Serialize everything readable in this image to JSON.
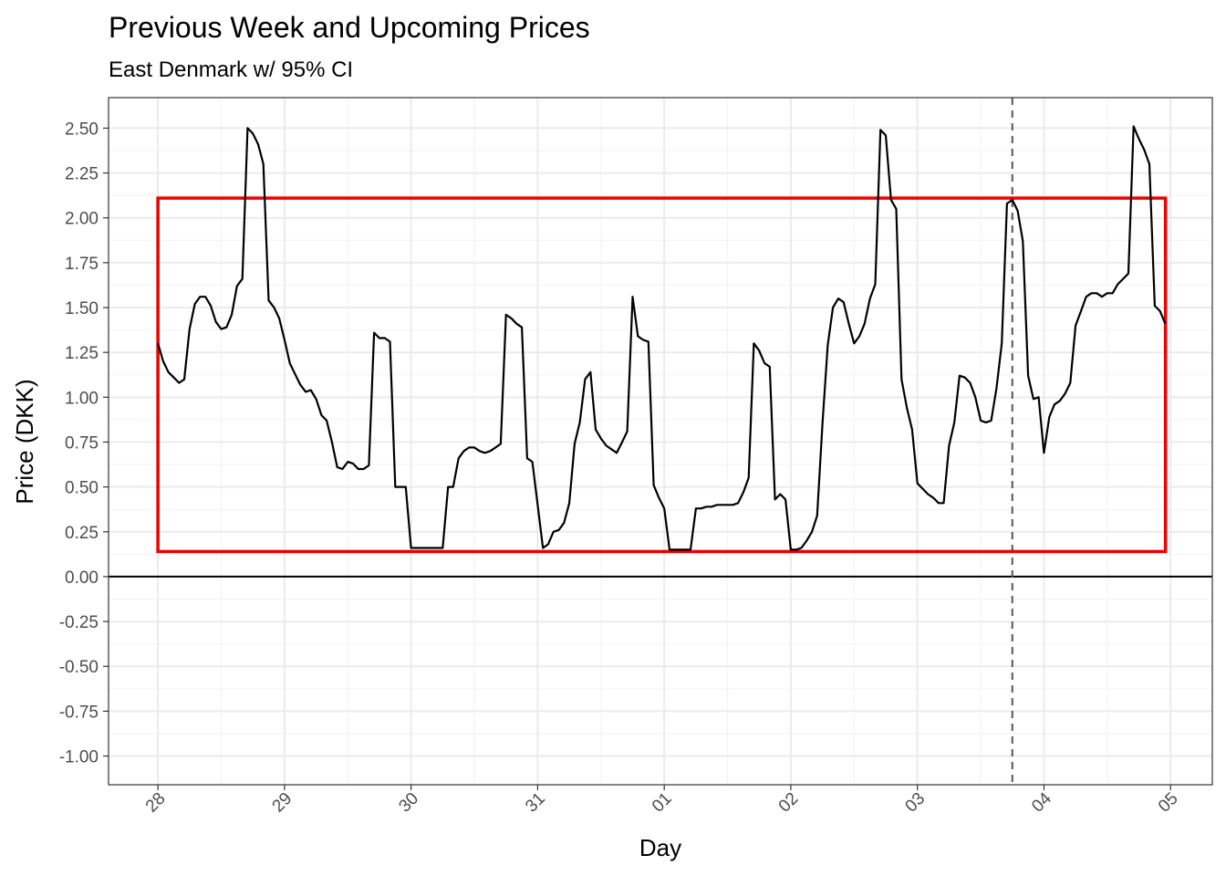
{
  "chart_data": {
    "type": "line",
    "title": "Previous Week and Upcoming Prices",
    "subtitle": "East Denmark w/ 95% CI",
    "xlabel": "Day",
    "ylabel": "Price (DKK)",
    "x_tick_labels": [
      "28",
      "29",
      "30",
      "31",
      "01",
      "02",
      "03",
      "04",
      "05"
    ],
    "y_tick_labels": [
      "-1.00",
      "-0.75",
      "-0.50",
      "-0.25",
      "0.00",
      "0.25",
      "0.50",
      "0.75",
      "1.00",
      "1.25",
      "1.50",
      "1.75",
      "2.00",
      "2.25",
      "2.50"
    ],
    "y_ticks": [
      -1.0,
      -0.75,
      -0.5,
      -0.25,
      0.0,
      0.25,
      0.5,
      0.75,
      1.0,
      1.25,
      1.5,
      1.75,
      2.0,
      2.25,
      2.5
    ],
    "xlim": [
      -0.39,
      8.33
    ],
    "ylim": [
      -1.16,
      2.67
    ],
    "grid": true,
    "hline_y": 0.0,
    "vline_x": 6.75,
    "ci_band": {
      "x_start": 0.0,
      "x_end": 7.96,
      "y_low": 0.14,
      "y_high": 2.11,
      "color": "#ee0000"
    },
    "series": [
      {
        "color": "#000000",
        "x": [
          0.0,
          0.042,
          0.083,
          0.125,
          0.167,
          0.208,
          0.25,
          0.292,
          0.333,
          0.375,
          0.417,
          0.458,
          0.5,
          0.542,
          0.583,
          0.625,
          0.667,
          0.708,
          0.75,
          0.792,
          0.833,
          0.875,
          0.917,
          0.958,
          1.0,
          1.042,
          1.083,
          1.125,
          1.167,
          1.208,
          1.25,
          1.292,
          1.333,
          1.375,
          1.417,
          1.458,
          1.5,
          1.542,
          1.583,
          1.625,
          1.667,
          1.708,
          1.75,
          1.792,
          1.833,
          1.875,
          1.917,
          1.958,
          2.0,
          2.042,
          2.083,
          2.125,
          2.167,
          2.208,
          2.25,
          2.292,
          2.333,
          2.375,
          2.417,
          2.458,
          2.5,
          2.542,
          2.583,
          2.625,
          2.667,
          2.708,
          2.75,
          2.792,
          2.833,
          2.875,
          2.917,
          2.958,
          3.0,
          3.042,
          3.083,
          3.125,
          3.167,
          3.208,
          3.25,
          3.292,
          3.333,
          3.375,
          3.417,
          3.458,
          3.5,
          3.542,
          3.583,
          3.625,
          3.667,
          3.708,
          3.75,
          3.792,
          3.833,
          3.875,
          3.917,
          3.958,
          4.0,
          4.042,
          4.083,
          4.125,
          4.167,
          4.208,
          4.25,
          4.292,
          4.333,
          4.375,
          4.417,
          4.458,
          4.5,
          4.542,
          4.583,
          4.625,
          4.667,
          4.708,
          4.75,
          4.792,
          4.833,
          4.875,
          4.917,
          4.958,
          5.0,
          5.042,
          5.083,
          5.125,
          5.167,
          5.208,
          5.25,
          5.292,
          5.333,
          5.375,
          5.417,
          5.458,
          5.5,
          5.542,
          5.583,
          5.625,
          5.667,
          5.708,
          5.75,
          5.792,
          5.833,
          5.875,
          5.917,
          5.958,
          6.0,
          6.042,
          6.083,
          6.125,
          6.167,
          6.208,
          6.25,
          6.292,
          6.333,
          6.375,
          6.417,
          6.458,
          6.5,
          6.542,
          6.583,
          6.625,
          6.667,
          6.708,
          6.75,
          6.792,
          6.833,
          6.875,
          6.917,
          6.958,
          7.0,
          7.042,
          7.083,
          7.125,
          7.167,
          7.208,
          7.25,
          7.292,
          7.333,
          7.375,
          7.417,
          7.458,
          7.5,
          7.542,
          7.583,
          7.625,
          7.667,
          7.708,
          7.75,
          7.792,
          7.833,
          7.875,
          7.917,
          7.958
        ],
        "y": [
          1.3,
          1.2,
          1.14,
          1.11,
          1.08,
          1.1,
          1.38,
          1.52,
          1.56,
          1.56,
          1.51,
          1.42,
          1.38,
          1.39,
          1.46,
          1.62,
          1.66,
          2.5,
          2.47,
          2.41,
          2.3,
          1.54,
          1.5,
          1.44,
          1.32,
          1.19,
          1.13,
          1.07,
          1.03,
          1.04,
          0.99,
          0.9,
          0.87,
          0.75,
          0.61,
          0.6,
          0.64,
          0.63,
          0.6,
          0.6,
          0.62,
          1.36,
          1.33,
          1.33,
          1.31,
          0.5,
          0.5,
          0.5,
          0.16,
          0.16,
          0.16,
          0.16,
          0.16,
          0.16,
          0.16,
          0.5,
          0.5,
          0.66,
          0.7,
          0.72,
          0.72,
          0.7,
          0.69,
          0.7,
          0.72,
          0.74,
          1.46,
          1.44,
          1.41,
          1.39,
          0.66,
          0.64,
          0.4,
          0.16,
          0.18,
          0.25,
          0.26,
          0.3,
          0.41,
          0.74,
          0.86,
          1.1,
          1.14,
          0.82,
          0.77,
          0.73,
          0.71,
          0.69,
          0.75,
          0.81,
          1.56,
          1.34,
          1.32,
          1.31,
          0.51,
          0.44,
          0.38,
          0.15,
          0.15,
          0.15,
          0.15,
          0.15,
          0.38,
          0.38,
          0.39,
          0.39,
          0.4,
          0.4,
          0.4,
          0.4,
          0.41,
          0.47,
          0.55,
          1.3,
          1.26,
          1.19,
          1.17,
          0.43,
          0.46,
          0.43,
          0.15,
          0.15,
          0.16,
          0.2,
          0.25,
          0.34,
          0.85,
          1.29,
          1.5,
          1.55,
          1.53,
          1.41,
          1.3,
          1.34,
          1.41,
          1.55,
          1.63,
          2.49,
          2.46,
          2.1,
          2.05,
          1.1,
          0.94,
          0.82,
          0.52,
          0.49,
          0.46,
          0.44,
          0.41,
          0.41,
          0.73,
          0.86,
          1.12,
          1.11,
          1.08,
          1.0,
          0.87,
          0.86,
          0.87,
          1.05,
          1.3,
          2.08,
          2.1,
          2.04,
          1.87,
          1.12,
          0.99,
          1.0,
          0.69,
          0.89,
          0.96,
          0.98,
          1.02,
          1.08,
          1.4,
          1.48,
          1.56,
          1.58,
          1.58,
          1.56,
          1.58,
          1.58,
          1.63,
          1.66,
          1.69,
          2.51,
          2.44,
          2.38,
          2.3,
          1.51,
          1.48,
          1.41
        ]
      }
    ]
  }
}
